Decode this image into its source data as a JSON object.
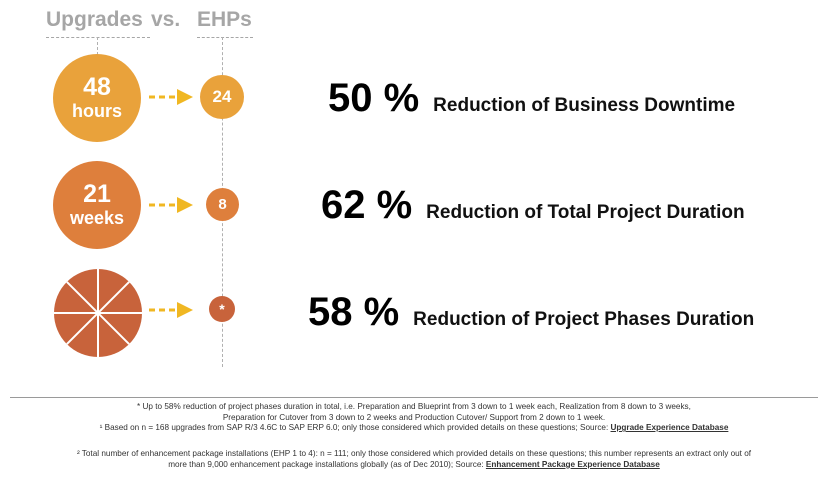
{
  "header": {
    "left": "Upgrades",
    "middle": "vs.",
    "right": "EHPs"
  },
  "colors": {
    "row1": "#E9A23B",
    "row2": "#DE7F3C",
    "row3": "#C8633B",
    "arrow": "#F0B722"
  },
  "rows": [
    {
      "upgrade_value": "48",
      "upgrade_unit": "hours",
      "ehp_value": "24",
      "percent": "50 %",
      "description": "Reduction of Business Downtime"
    },
    {
      "upgrade_value": "21",
      "upgrade_unit": "weeks",
      "ehp_value": "8",
      "percent": "62 %",
      "description": "Reduction of Total Project Duration"
    },
    {
      "upgrade_icon": "pie-segments-icon",
      "ehp_value": "*",
      "percent": "58 %",
      "description": "Reduction of Project Phases Duration"
    }
  ],
  "footnotes": {
    "star_line1": "* Up to 58% reduction of project phases duration in total, i.e. Preparation and Blueprint from 3 down to 1 week each, Realization from 8 down to 3 weeks,",
    "star_line2": "Preparation for Cutover from 3 down to 2 weeks and Production Cutover/ Support from 2 down to 1 week.",
    "note1_prefix": "¹ Based on  n = 168 upgrades from SAP R/3 4.6C to SAP ERP 6.0; only those considered which provided details on these questions; Source: ",
    "note1_source": "Upgrade Experience Database",
    "note2_line1": "² Total number of enhancement package installations (EHP 1 to 4): n = 111; only those considered which provided details on these questions; this number represents an extract only out of",
    "note2_line2_prefix": "more than 9,000 enhancement package installations globally (as of Dec 2010); Source: ",
    "note2_source": "Enhancement Package Experience Database"
  }
}
